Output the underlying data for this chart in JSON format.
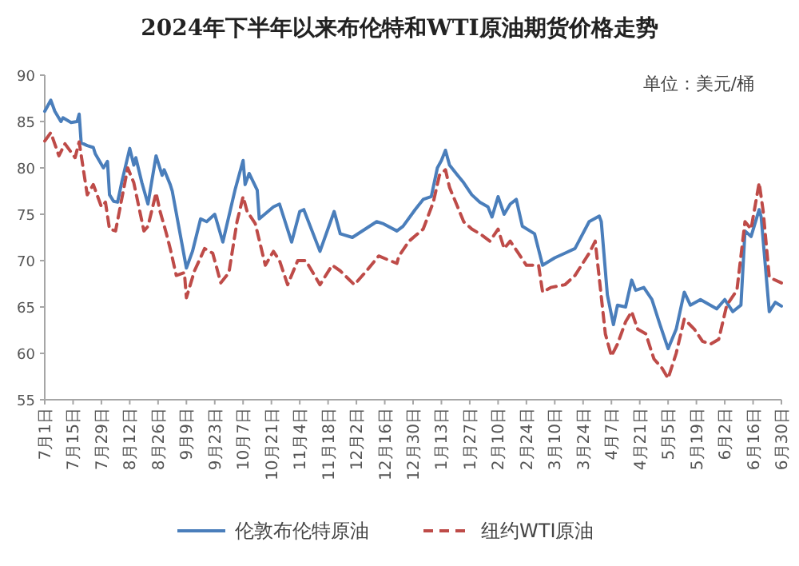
{
  "chart_data": {
    "type": "line",
    "title": "2024年下半年以来布伦特和WTI原油期货价格走势",
    "annotations": [
      "单位：美元/桶"
    ],
    "legend": "bottom",
    "ylim": [
      55,
      90
    ],
    "yticks": [
      55,
      60,
      65,
      70,
      75,
      80,
      85,
      90
    ],
    "xlim": [
      "2024-07-01",
      "2025-06-30"
    ],
    "xticks": [
      {
        "value": "2024-07-01",
        "label": "7月1日"
      },
      {
        "value": "2024-07-15",
        "label": "7月15日"
      },
      {
        "value": "2024-07-29",
        "label": "7月29日"
      },
      {
        "value": "2024-08-12",
        "label": "8月12日"
      },
      {
        "value": "2024-08-26",
        "label": "8月26日"
      },
      {
        "value": "2024-09-09",
        "label": "9月9日"
      },
      {
        "value": "2024-09-23",
        "label": "9月23日"
      },
      {
        "value": "2024-10-07",
        "label": "10月7日"
      },
      {
        "value": "2024-10-21",
        "label": "10月21日"
      },
      {
        "value": "2024-11-04",
        "label": "11月4日"
      },
      {
        "value": "2024-11-18",
        "label": "11月18日"
      },
      {
        "value": "2024-12-02",
        "label": "12月2日"
      },
      {
        "value": "2024-12-16",
        "label": "12月16日"
      },
      {
        "value": "2024-12-30",
        "label": "12月30日"
      },
      {
        "value": "2025-01-13",
        "label": "1月13日"
      },
      {
        "value": "2025-01-27",
        "label": "1月27日"
      },
      {
        "value": "2025-02-10",
        "label": "2月10日"
      },
      {
        "value": "2025-02-24",
        "label": "2月24日"
      },
      {
        "value": "2025-03-10",
        "label": "3月10日"
      },
      {
        "value": "2025-03-24",
        "label": "3月24日"
      },
      {
        "value": "2025-04-07",
        "label": "4月7日"
      },
      {
        "value": "2025-04-21",
        "label": "4月21日"
      },
      {
        "value": "2025-05-05",
        "label": "5月5日"
      },
      {
        "value": "2025-05-19",
        "label": "5月19日"
      },
      {
        "value": "2025-06-02",
        "label": "6月2日"
      },
      {
        "value": "2025-06-16",
        "label": "6月16日"
      },
      {
        "value": "2025-06-30",
        "label": "6月30日"
      }
    ],
    "series": [
      {
        "name": "伦敦布伦特原油",
        "color": "#4a7ebb",
        "line_style": "solid",
        "x": [
          "2024-07-01",
          "2024-07-04",
          "2024-07-06",
          "2024-07-09",
          "2024-07-10",
          "2024-07-14",
          "2024-07-17",
          "2024-07-18",
          "2024-07-19",
          "2024-07-22",
          "2024-07-25",
          "2024-07-26",
          "2024-07-30",
          "2024-08-01",
          "2024-08-02",
          "2024-08-04",
          "2024-08-06",
          "2024-08-08",
          "2024-08-12",
          "2024-08-14",
          "2024-08-15",
          "2024-08-18",
          "2024-08-21",
          "2024-08-25",
          "2024-08-28",
          "2024-08-29",
          "2024-09-01",
          "2024-09-02",
          "2024-09-09",
          "2024-09-12",
          "2024-09-16",
          "2024-09-19",
          "2024-09-23",
          "2024-09-27",
          "2024-10-03",
          "2024-10-07",
          "2024-10-08",
          "2024-10-10",
          "2024-10-14",
          "2024-10-15",
          "2024-10-22",
          "2024-10-25",
          "2024-10-31",
          "2024-11-04",
          "2024-11-06",
          "2024-11-14",
          "2024-11-21",
          "2024-11-24",
          "2024-11-30",
          "2024-12-12",
          "2024-12-15",
          "2024-12-22",
          "2024-12-25",
          "2024-12-31",
          "2025-01-04",
          "2025-01-08",
          "2025-01-11",
          "2025-01-13",
          "2025-01-15",
          "2025-01-17",
          "2025-01-21",
          "2025-01-24",
          "2025-01-28",
          "2025-02-01",
          "2025-02-05",
          "2025-02-07",
          "2025-02-10",
          "2025-02-13",
          "2025-02-16",
          "2025-02-19",
          "2025-02-22",
          "2025-02-28",
          "2025-03-04",
          "2025-03-10",
          "2025-03-15",
          "2025-03-20",
          "2025-03-27",
          "2025-04-01",
          "2025-04-02",
          "2025-04-05",
          "2025-04-08",
          "2025-04-10",
          "2025-04-14",
          "2025-04-17",
          "2025-04-19",
          "2025-04-23",
          "2025-04-27",
          "2025-05-01",
          "2025-05-05",
          "2025-05-09",
          "2025-05-13",
          "2025-05-16",
          "2025-05-21",
          "2025-05-29",
          "2025-06-02",
          "2025-06-06",
          "2025-06-10",
          "2025-06-12",
          "2025-06-15",
          "2025-06-19",
          "2025-06-20",
          "2025-06-24",
          "2025-06-27",
          "2025-06-30"
        ],
        "values": [
          86.1,
          87.3,
          86.1,
          85.0,
          85.4,
          84.9,
          85.0,
          85.8,
          82.7,
          82.4,
          82.2,
          81.5,
          80.0,
          80.7,
          77.1,
          76.4,
          76.3,
          78.4,
          82.1,
          80.3,
          81.1,
          78.4,
          76.1,
          81.3,
          79.2,
          79.8,
          78.2,
          77.5,
          69.2,
          71.0,
          74.5,
          74.2,
          75.0,
          72.0,
          77.6,
          80.8,
          78.2,
          79.4,
          77.6,
          74.5,
          75.8,
          76.1,
          72.0,
          75.3,
          75.5,
          71.0,
          75.3,
          72.9,
          72.5,
          74.2,
          74.0,
          73.2,
          73.7,
          75.5,
          76.6,
          76.9,
          80.0,
          80.8,
          81.9,
          80.3,
          79.2,
          78.4,
          77.1,
          76.3,
          75.8,
          74.7,
          76.9,
          75.0,
          76.1,
          76.6,
          73.7,
          72.9,
          69.5,
          70.3,
          70.8,
          71.3,
          74.2,
          74.8,
          74.2,
          66.3,
          63.1,
          65.2,
          65.0,
          67.9,
          66.8,
          67.1,
          65.8,
          63.1,
          60.5,
          62.6,
          66.6,
          65.2,
          65.8,
          64.8,
          65.8,
          64.5,
          65.2,
          73.2,
          72.6,
          75.5,
          74.7,
          64.5,
          65.5,
          65.1
        ]
      },
      {
        "name": "纽约WTI原油",
        "color": "#be4b48",
        "line_style": "dashed",
        "x": [
          "2024-07-01",
          "2024-07-04",
          "2024-07-08",
          "2024-07-11",
          "2024-07-16",
          "2024-07-18",
          "2024-07-22",
          "2024-07-25",
          "2024-07-29",
          "2024-07-31",
          "2024-08-02",
          "2024-08-05",
          "2024-08-11",
          "2024-08-14",
          "2024-08-19",
          "2024-08-21",
          "2024-08-25",
          "2024-08-27",
          "2024-08-30",
          "2024-09-01",
          "2024-09-04",
          "2024-09-08",
          "2024-09-09",
          "2024-09-13",
          "2024-09-18",
          "2024-09-22",
          "2024-09-26",
          "2024-09-30",
          "2024-10-04",
          "2024-10-07",
          "2024-10-09",
          "2024-10-13",
          "2024-10-18",
          "2024-10-22",
          "2024-10-25",
          "2024-10-29",
          "2024-11-03",
          "2024-11-07",
          "2024-11-14",
          "2024-11-20",
          "2024-11-24",
          "2024-12-01",
          "2024-12-07",
          "2024-12-13",
          "2024-12-22",
          "2024-12-23",
          "2024-12-28",
          "2025-01-04",
          "2025-01-09",
          "2025-01-12",
          "2025-01-15",
          "2025-01-17",
          "2025-01-21",
          "2025-01-24",
          "2025-01-28",
          "2025-02-01",
          "2025-02-06",
          "2025-02-10",
          "2025-02-13",
          "2025-02-16",
          "2025-02-20",
          "2025-02-24",
          "2025-03-02",
          "2025-03-04",
          "2025-03-08",
          "2025-03-15",
          "2025-03-20",
          "2025-03-27",
          "2025-03-30",
          "2025-04-04",
          "2025-04-07",
          "2025-04-10",
          "2025-04-14",
          "2025-04-17",
          "2025-04-20",
          "2025-04-24",
          "2025-04-28",
          "2025-05-02",
          "2025-05-05",
          "2025-05-09",
          "2025-05-13",
          "2025-05-18",
          "2025-05-22",
          "2025-05-26",
          "2025-05-30",
          "2025-06-03",
          "2025-06-08",
          "2025-06-12",
          "2025-06-15",
          "2025-06-19",
          "2025-06-21",
          "2025-06-24",
          "2025-06-30"
        ],
        "values": [
          82.9,
          83.8,
          81.3,
          82.6,
          81.1,
          82.8,
          77.1,
          78.2,
          75.8,
          76.3,
          73.4,
          73.2,
          80.0,
          78.4,
          73.2,
          73.7,
          77.3,
          75.3,
          73.0,
          71.3,
          68.4,
          68.7,
          66.0,
          68.9,
          71.3,
          70.8,
          67.6,
          68.7,
          74.2,
          76.9,
          75.3,
          74.0,
          69.5,
          71.0,
          70.0,
          67.4,
          70.0,
          70.0,
          67.4,
          69.5,
          68.9,
          67.4,
          68.9,
          70.5,
          69.7,
          70.5,
          72.1,
          73.4,
          76.3,
          79.2,
          79.8,
          77.9,
          75.8,
          74.2,
          73.4,
          72.9,
          72.1,
          73.4,
          71.3,
          72.1,
          70.8,
          69.5,
          69.5,
          66.6,
          67.1,
          67.4,
          68.4,
          70.8,
          72.1,
          62.1,
          59.7,
          61.0,
          63.4,
          64.5,
          62.6,
          62.1,
          59.4,
          58.4,
          57.3,
          60.0,
          63.7,
          62.6,
          61.3,
          61.0,
          61.5,
          65.2,
          66.8,
          74.2,
          73.4,
          78.4,
          75.3,
          68.2,
          67.6
        ]
      }
    ]
  }
}
